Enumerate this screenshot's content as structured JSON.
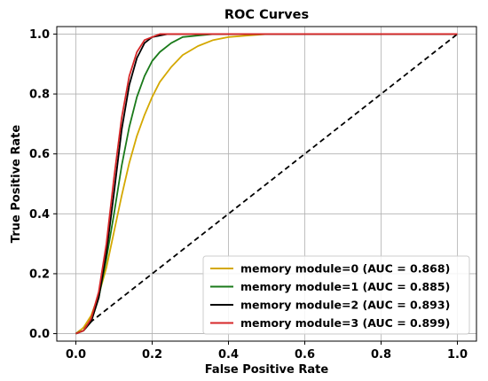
{
  "chart_data": {
    "type": "line",
    "title": "ROC Curves",
    "xlabel": "False Positive Rate",
    "ylabel": "True Positive Rate",
    "xlim": [
      -0.05,
      1.05
    ],
    "ylim": [
      -0.025,
      1.025
    ],
    "xticks": [
      0.0,
      0.2,
      0.4,
      0.6,
      0.8,
      1.0
    ],
    "yticks": [
      0.0,
      0.2,
      0.4,
      0.6,
      0.8,
      1.0
    ],
    "tick_labels_x": [
      "0.0",
      "0.2",
      "0.4",
      "0.6",
      "0.8",
      "1.0"
    ],
    "tick_labels_y": [
      "0.0",
      "0.2",
      "0.4",
      "0.6",
      "0.8",
      "1.0"
    ],
    "grid": true,
    "legend_position": "bottom-right",
    "series": [
      {
        "name": "memory module=0 (AUC = 0.868)",
        "color": "#d4a800",
        "x": [
          0.0,
          0.02,
          0.04,
          0.06,
          0.08,
          0.1,
          0.12,
          0.14,
          0.16,
          0.18,
          0.2,
          0.22,
          0.25,
          0.28,
          0.32,
          0.36,
          0.4,
          0.45,
          0.5,
          0.6,
          1.0
        ],
        "y": [
          0.0,
          0.02,
          0.06,
          0.13,
          0.22,
          0.34,
          0.46,
          0.57,
          0.66,
          0.73,
          0.79,
          0.84,
          0.89,
          0.93,
          0.96,
          0.98,
          0.99,
          0.995,
          1.0,
          1.0,
          1.0
        ]
      },
      {
        "name": "memory module=1 (AUC = 0.885)",
        "color": "#1a7a1a",
        "x": [
          0.0,
          0.02,
          0.04,
          0.06,
          0.08,
          0.1,
          0.12,
          0.14,
          0.16,
          0.18,
          0.2,
          0.22,
          0.25,
          0.28,
          0.32,
          0.36,
          0.4,
          0.5,
          1.0
        ],
        "y": [
          0.0,
          0.01,
          0.04,
          0.12,
          0.25,
          0.4,
          0.56,
          0.69,
          0.79,
          0.86,
          0.91,
          0.94,
          0.97,
          0.99,
          0.995,
          1.0,
          1.0,
          1.0,
          1.0
        ]
      },
      {
        "name": "memory module=2 (AUC = 0.893)",
        "color": "#000000",
        "x": [
          0.0,
          0.02,
          0.04,
          0.06,
          0.08,
          0.1,
          0.12,
          0.14,
          0.16,
          0.18,
          0.2,
          0.22,
          0.24,
          0.26,
          0.3,
          0.35,
          0.4,
          0.5,
          1.0
        ],
        "y": [
          0.0,
          0.01,
          0.04,
          0.12,
          0.27,
          0.47,
          0.68,
          0.83,
          0.92,
          0.97,
          0.99,
          0.995,
          1.0,
          1.0,
          1.0,
          1.0,
          1.0,
          1.0,
          1.0
        ]
      },
      {
        "name": "memory module=3 (AUC = 0.899)",
        "color": "#d62728",
        "x": [
          0.0,
          0.02,
          0.04,
          0.06,
          0.08,
          0.1,
          0.12,
          0.14,
          0.16,
          0.18,
          0.2,
          0.22,
          0.24,
          0.26,
          0.3,
          0.35,
          0.4,
          0.5,
          1.0
        ],
        "y": [
          0.0,
          0.01,
          0.05,
          0.14,
          0.3,
          0.52,
          0.72,
          0.86,
          0.94,
          0.98,
          0.99,
          1.0,
          1.0,
          1.0,
          1.0,
          1.0,
          1.0,
          1.0,
          1.0
        ]
      }
    ],
    "reference_line": {
      "color": "#000000",
      "x": [
        0.0,
        1.0
      ],
      "y": [
        0.0,
        1.0
      ],
      "style": "dashed"
    }
  }
}
